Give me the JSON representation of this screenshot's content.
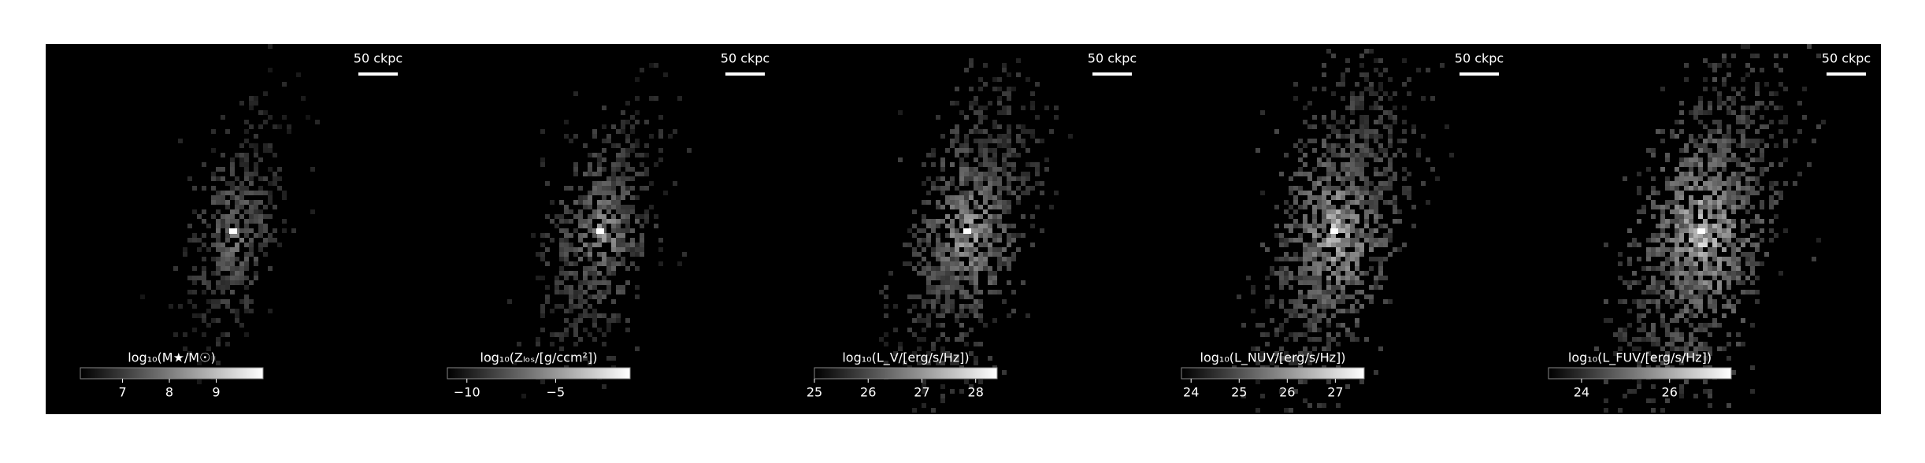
{
  "panels": [
    {
      "scale_bar": "50 ckpc",
      "colorbar": {
        "label": "log₁₀(M★/M☉)",
        "clim": [
          6.1,
          10
        ],
        "ticks": [
          7,
          8,
          9
        ]
      }
    },
    {
      "scale_bar": "50 ckpc",
      "colorbar": {
        "label": "log₁₀(Zₗₒₛ/[g/ccm²])",
        "clim": [
          -11.1,
          -0.8
        ],
        "ticks": [
          {
            "value": -10,
            "label": "−10"
          },
          {
            "value": -5,
            "label": "−5"
          }
        ]
      }
    },
    {
      "scale_bar": "50 ckpc",
      "colorbar": {
        "label": "log₁₀(L_V/[erg/s/Hz])",
        "clim": [
          25,
          28.4
        ],
        "ticks": [
          25,
          26,
          27,
          28
        ]
      }
    },
    {
      "scale_bar": "50 ckpc",
      "colorbar": {
        "label": "log₁₀(L_NUV/[erg/s/Hz])",
        "clim": [
          23.8,
          27.6
        ],
        "ticks": [
          24,
          25,
          26,
          27
        ]
      }
    },
    {
      "scale_bar": "50 ckpc",
      "colorbar": {
        "label": "log₁₀(L_FUV/[erg/s/Hz])",
        "clim": [
          23.25,
          27.4
        ],
        "ticks": [
          24,
          26
        ]
      }
    }
  ]
}
